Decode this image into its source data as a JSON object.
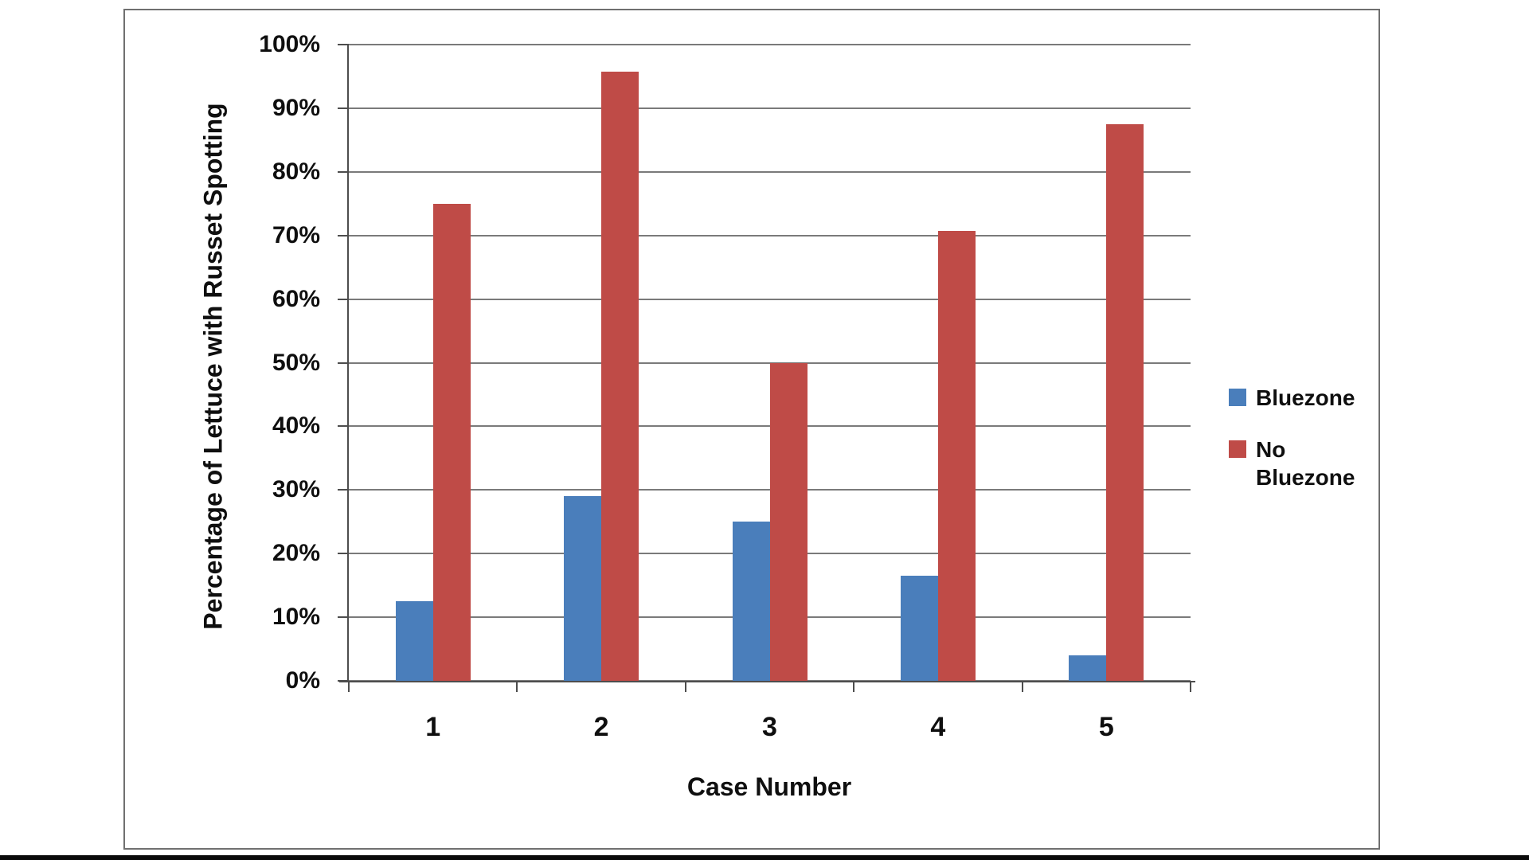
{
  "chart_data": {
    "type": "bar",
    "title": "",
    "xlabel": "Case Number",
    "ylabel": "Percentage of Lettuce with Russet Spotting",
    "categories": [
      "1",
      "2",
      "3",
      "4",
      "5"
    ],
    "series": [
      {
        "name": "Bluezone",
        "color": "#4a7ebb",
        "values": [
          12.5,
          29,
          25,
          16.5,
          4
        ]
      },
      {
        "name": "No Bluezone",
        "color": "#bf4b47",
        "values": [
          75,
          95.7,
          50,
          70.7,
          87.5
        ]
      }
    ],
    "ylim": [
      0,
      100
    ],
    "ytick_step": 10,
    "y_tick_labels": [
      "0%",
      "10%",
      "20%",
      "30%",
      "40%",
      "50%",
      "60%",
      "70%",
      "80%",
      "90%",
      "100%"
    ],
    "grid": true,
    "legend_position": "right",
    "bar_grouping": "clustered"
  },
  "colors": {
    "grid": "#7a7a7a",
    "axis": "#4d4d4d",
    "figure_border": "#707070",
    "text": "#0f0f0f"
  }
}
